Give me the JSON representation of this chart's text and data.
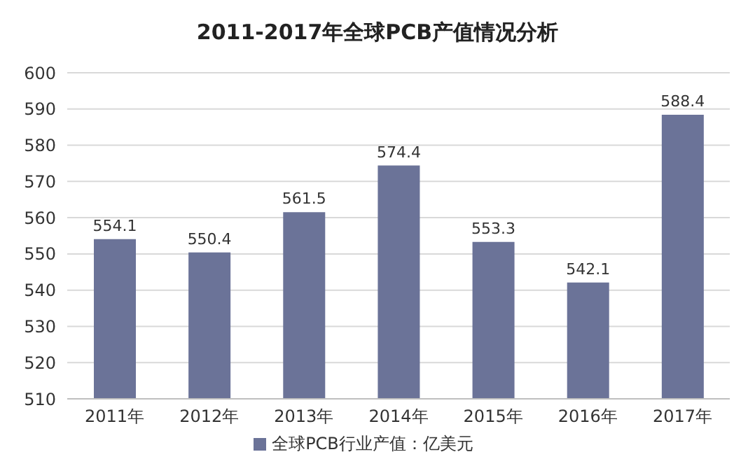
{
  "chart_data": {
    "type": "bar",
    "title": "2011-2017年全球PCB产值情况分析",
    "categories": [
      "2011年",
      "2012年",
      "2013年",
      "2014年",
      "2015年",
      "2016年",
      "2017年"
    ],
    "series": [
      {
        "name": "全球PCB行业产值：亿美元",
        "color": "#6b7398",
        "values": [
          554.1,
          550.4,
          561.5,
          574.4,
          553.3,
          542.1,
          588.4
        ]
      }
    ],
    "ylim": [
      510,
      600
    ],
    "yticks": [
      510,
      520,
      530,
      540,
      550,
      560,
      570,
      580,
      590,
      600
    ],
    "grid": "y",
    "legend": "bottom",
    "data_labels": true
  }
}
